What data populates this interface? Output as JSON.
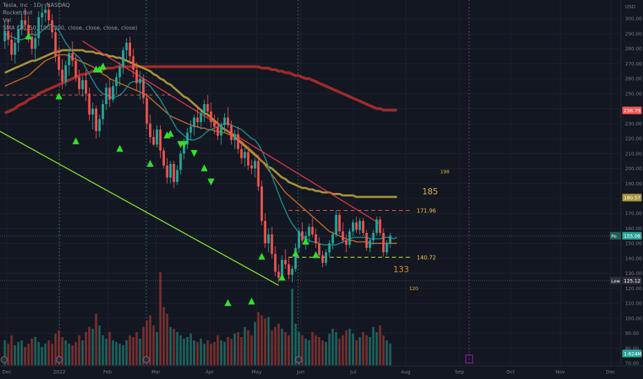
{
  "legend": {
    "line1": "Tesla, Inc · 1D · NASDAQ",
    "line2": "Rocket Bot",
    "line3": "Vol",
    "line4": "SMA (20, 50, 100, 200, close, close, close, close)"
  },
  "colors": {
    "background": "#131722",
    "grid": "#1e222d",
    "bull": "#26a69a",
    "bear": "#ef5350",
    "sma20": "#1b8a8a",
    "sma50": "#c06a28",
    "sma100": "#a89338",
    "sma200": "#a12a2a",
    "signal": "#32e02c",
    "support_line": "#7ee02a",
    "resistance_line": "#e0344a"
  },
  "chart_data": {
    "type": "candlestick",
    "ylabel": "USD",
    "ylim": [
      70,
      310
    ],
    "x_ticks": [
      "Dec",
      "2022",
      "Feb",
      "Mar",
      "Apr",
      "May",
      "Jun",
      "Jul",
      "Aug",
      "Sep",
      "Oct",
      "Nov",
      "Dec"
    ],
    "y_ticks": [
      70,
      80,
      90,
      100,
      110,
      120,
      130,
      140,
      150,
      160,
      170,
      180,
      190,
      200,
      210,
      220,
      230,
      240,
      250,
      260,
      270,
      280,
      290,
      300
    ],
    "price_badges": [
      {
        "label": "",
        "value": "238.79",
        "color": "#ef5350"
      },
      {
        "label": "",
        "value": "180.57",
        "color": "#a89338"
      },
      {
        "label": "Po",
        "value": "155.06",
        "color": "#26a69a"
      },
      {
        "label": "Low",
        "value": "125.12",
        "color": "#2a2e39"
      },
      {
        "label": "",
        "value": "1.624M",
        "color": "#26a69a"
      }
    ],
    "levels": [
      {
        "label": "171.96",
        "value": 171.96,
        "color": "#ef5350"
      },
      {
        "label": "140.72",
        "value": 140.72,
        "color": "#c8e84a"
      }
    ],
    "targets": [
      {
        "label": "185",
        "value": 185,
        "color": "#e0b040"
      },
      {
        "label": "198",
        "value": 198,
        "color": "#e0b040"
      },
      {
        "label": "133",
        "value": 133,
        "color": "#e08a20"
      },
      {
        "label": "120",
        "value": 120,
        "color": "#e0b040"
      }
    ],
    "candles": [
      [
        285,
        298,
        280,
        292
      ],
      [
        292,
        300,
        282,
        286
      ],
      [
        286,
        291,
        272,
        276
      ],
      [
        276,
        288,
        270,
        284
      ],
      [
        284,
        296,
        278,
        293
      ],
      [
        293,
        305,
        289,
        299
      ],
      [
        299,
        307,
        292,
        296
      ],
      [
        296,
        302,
        284,
        288
      ],
      [
        288,
        294,
        276,
        280
      ],
      [
        280,
        292,
        272,
        287
      ],
      [
        287,
        305,
        282,
        301
      ],
      [
        301,
        310,
        295,
        304
      ],
      [
        304,
        310,
        298,
        306
      ],
      [
        306,
        310,
        296,
        299
      ],
      [
        299,
        303,
        287,
        291
      ],
      [
        291,
        293,
        271,
        275
      ],
      [
        275,
        281,
        262,
        266
      ],
      [
        266,
        273,
        253,
        258
      ],
      [
        258,
        272,
        255,
        269
      ],
      [
        269,
        280,
        262,
        277
      ],
      [
        277,
        285,
        268,
        272
      ],
      [
        272,
        276,
        258,
        261
      ],
      [
        261,
        266,
        249,
        253
      ],
      [
        253,
        262,
        248,
        259
      ],
      [
        259,
        266,
        245,
        250
      ],
      [
        250,
        254,
        232,
        236
      ],
      [
        236,
        244,
        226,
        240
      ],
      [
        240,
        242,
        220,
        225
      ],
      [
        225,
        236,
        221,
        233
      ],
      [
        233,
        246,
        229,
        243
      ],
      [
        243,
        257,
        239,
        254
      ],
      [
        254,
        260,
        241,
        246
      ],
      [
        246,
        258,
        244,
        255
      ],
      [
        255,
        264,
        249,
        261
      ],
      [
        261,
        271,
        255,
        268
      ],
      [
        268,
        281,
        263,
        279
      ],
      [
        279,
        287,
        272,
        284
      ],
      [
        284,
        288,
        270,
        275
      ],
      [
        275,
        280,
        261,
        266
      ],
      [
        266,
        271,
        252,
        257
      ],
      [
        257,
        265,
        246,
        260
      ],
      [
        260,
        263,
        243,
        247
      ],
      [
        247,
        250,
        226,
        230
      ],
      [
        230,
        236,
        217,
        221
      ],
      [
        221,
        226,
        215,
        216
      ],
      [
        216,
        229,
        214,
        226
      ],
      [
        226,
        229,
        207,
        212
      ],
      [
        212,
        214,
        200,
        202
      ],
      [
        202,
        207,
        190,
        194
      ],
      [
        194,
        205,
        190,
        203
      ],
      [
        203,
        205,
        187,
        191
      ],
      [
        191,
        202,
        189,
        199
      ],
      [
        199,
        212,
        196,
        210
      ],
      [
        210,
        220,
        206,
        216
      ],
      [
        216,
        227,
        213,
        224
      ],
      [
        224,
        232,
        219,
        228
      ],
      [
        228,
        236,
        222,
        234
      ],
      [
        234,
        240,
        227,
        231
      ],
      [
        231,
        239,
        226,
        237
      ],
      [
        237,
        246,
        231,
        243
      ],
      [
        243,
        249,
        234,
        238
      ],
      [
        238,
        244,
        227,
        231
      ],
      [
        231,
        236,
        223,
        228
      ],
      [
        228,
        234,
        219,
        222
      ],
      [
        222,
        231,
        216,
        229
      ],
      [
        229,
        237,
        224,
        234
      ],
      [
        234,
        241,
        227,
        229
      ],
      [
        229,
        232,
        216,
        219
      ],
      [
        219,
        226,
        213,
        223
      ],
      [
        223,
        228,
        210,
        213
      ],
      [
        213,
        218,
        203,
        207
      ],
      [
        207,
        214,
        201,
        211
      ],
      [
        211,
        215,
        199,
        202
      ],
      [
        202,
        206,
        196,
        200
      ],
      [
        200,
        207,
        194,
        205
      ],
      [
        205,
        209,
        185,
        188
      ],
      [
        188,
        192,
        162,
        165
      ],
      [
        165,
        170,
        147,
        150
      ],
      [
        150,
        160,
        144,
        156
      ],
      [
        156,
        161,
        140,
        143
      ],
      [
        143,
        148,
        128,
        131
      ],
      [
        131,
        136,
        124,
        127
      ],
      [
        127,
        142,
        125,
        139
      ],
      [
        139,
        146,
        133,
        136
      ],
      [
        136,
        141,
        126,
        129
      ],
      [
        129,
        135,
        124,
        133
      ],
      [
        133,
        150,
        131,
        147
      ],
      [
        147,
        160,
        144,
        158
      ],
      [
        158,
        164,
        150,
        152
      ],
      [
        152,
        158,
        146,
        155
      ],
      [
        155,
        163,
        150,
        161
      ],
      [
        161,
        167,
        154,
        156
      ],
      [
        156,
        160,
        147,
        150
      ],
      [
        150,
        154,
        140,
        142
      ],
      [
        142,
        145,
        134,
        137
      ],
      [
        137,
        146,
        135,
        144
      ],
      [
        144,
        152,
        141,
        150
      ],
      [
        150,
        158,
        146,
        156
      ],
      [
        156,
        172,
        154,
        169
      ],
      [
        169,
        171,
        156,
        158
      ],
      [
        158,
        164,
        150,
        152
      ],
      [
        152,
        156,
        144,
        149
      ],
      [
        149,
        160,
        147,
        158
      ],
      [
        158,
        166,
        155,
        164
      ],
      [
        164,
        168,
        157,
        159
      ],
      [
        159,
        167,
        156,
        165
      ],
      [
        165,
        167,
        155,
        157
      ],
      [
        157,
        159,
        145,
        147
      ],
      [
        147,
        154,
        144,
        152
      ],
      [
        152,
        159,
        149,
        157
      ],
      [
        157,
        168,
        155,
        166
      ],
      [
        166,
        168,
        155,
        157
      ],
      [
        157,
        160,
        141,
        144
      ],
      [
        144,
        152,
        142,
        150
      ],
      [
        150,
        157,
        147,
        155
      ]
    ],
    "volume": [
      30,
      26,
      36,
      24,
      28,
      30,
      22,
      26,
      32,
      34,
      28,
      22,
      26,
      30,
      26,
      38,
      42,
      34,
      30,
      26,
      24,
      28,
      36,
      30,
      40,
      46,
      44,
      62,
      48,
      36,
      32,
      40,
      30,
      28,
      26,
      24,
      30,
      36,
      34,
      40,
      32,
      46,
      54,
      60,
      48,
      40,
      112,
      70,
      62,
      46,
      44,
      40,
      36,
      32,
      34,
      38,
      30,
      28,
      32,
      26,
      30,
      26,
      28,
      36,
      30,
      28,
      34,
      32,
      38,
      40,
      34,
      46,
      42,
      36,
      52,
      64,
      60,
      56,
      58,
      42,
      46,
      50,
      44,
      40,
      36,
      92,
      50,
      40,
      36,
      32,
      30,
      40,
      36,
      34,
      30,
      28,
      38,
      44,
      40,
      32,
      36,
      42,
      44,
      38,
      30,
      34,
      40,
      36,
      34,
      46,
      40,
      48,
      36,
      30,
      26
    ],
    "sma20": [
      290,
      289,
      288,
      287,
      286,
      286,
      287,
      289,
      290,
      289,
      290,
      292,
      294,
      296,
      296,
      294,
      292,
      288,
      284,
      281,
      278,
      276,
      274,
      271,
      267,
      263,
      259,
      255,
      252,
      250,
      249,
      248,
      247,
      248,
      249,
      251,
      254,
      257,
      258,
      258,
      259,
      258,
      257,
      255,
      252,
      249,
      246,
      242,
      238,
      234,
      230,
      226,
      224,
      222,
      220,
      219,
      219,
      220,
      221,
      223,
      225,
      226,
      227,
      228,
      229,
      230,
      230,
      229,
      228,
      227,
      226,
      224,
      222,
      220,
      219,
      216,
      212,
      207,
      201,
      195,
      189,
      183,
      177,
      172,
      167,
      163,
      160,
      157,
      155,
      153,
      152,
      151,
      151,
      150,
      149,
      149,
      149,
      149,
      149,
      150,
      151,
      152,
      153,
      154,
      154,
      154,
      154,
      154,
      153,
      153,
      153,
      153,
      154,
      154,
      154,
      153,
      154
    ],
    "sma50": [
      255,
      256,
      257,
      258,
      259,
      260,
      261,
      262,
      264,
      266,
      268,
      270,
      272,
      273,
      274,
      275,
      276,
      276,
      276,
      275,
      274,
      273,
      272,
      271,
      270,
      269,
      268,
      266,
      265,
      263,
      262,
      260,
      259,
      258,
      257,
      256,
      255,
      254,
      253,
      252,
      251,
      250,
      249,
      247,
      245,
      243,
      241,
      239,
      237,
      235,
      234,
      233,
      232,
      231,
      230,
      229,
      228,
      228,
      227,
      227,
      226,
      226,
      225,
      225,
      224,
      224,
      223,
      222,
      221,
      220,
      218,
      216,
      214,
      212,
      210,
      208,
      205,
      202,
      199,
      196,
      193,
      190,
      187,
      184,
      182,
      180,
      178,
      176,
      174,
      172,
      170,
      168,
      166,
      164,
      162,
      160,
      158,
      157,
      156,
      155,
      154,
      153,
      152,
      152,
      151,
      151,
      151,
      151,
      150,
      150,
      150,
      150,
      150,
      150,
      150,
      150,
      150
    ],
    "sma100": [
      264,
      265,
      266,
      267,
      268,
      269,
      270,
      271,
      272,
      272,
      273,
      274,
      275,
      276,
      277,
      278,
      278,
      279,
      279,
      279,
      279,
      279,
      279,
      279,
      278,
      278,
      278,
      277,
      277,
      276,
      276,
      275,
      275,
      274,
      274,
      273,
      272,
      271,
      270,
      269,
      268,
      267,
      266,
      265,
      263,
      262,
      260,
      259,
      257,
      256,
      254,
      252,
      250,
      248,
      247,
      245,
      243,
      241,
      239,
      237,
      236,
      234,
      232,
      230,
      228,
      226,
      225,
      223,
      221,
      219,
      217,
      215,
      213,
      211,
      209,
      207,
      205,
      203,
      201,
      200,
      198,
      196,
      194,
      193,
      191,
      190,
      189,
      188,
      187,
      187,
      186,
      186,
      185,
      185,
      184,
      184,
      184,
      183,
      183,
      183,
      182,
      182,
      182,
      182,
      181,
      181,
      181,
      181,
      181,
      181,
      181,
      181,
      181,
      181,
      181,
      181,
      181
    ],
    "sma200": [
      237,
      238,
      239,
      240,
      242,
      243,
      244,
      246,
      247,
      248,
      250,
      251,
      252,
      253,
      254,
      255,
      256,
      257,
      258,
      259,
      260,
      261,
      262,
      263,
      263,
      264,
      265,
      265,
      266,
      266,
      267,
      267,
      267,
      268,
      268,
      268,
      268,
      268,
      268,
      268,
      268,
      268,
      268,
      268,
      268,
      268,
      268,
      268,
      268,
      268,
      268,
      268,
      268,
      268,
      268,
      268,
      268,
      268,
      268,
      268,
      268,
      268,
      268,
      268,
      268,
      268,
      268,
      268,
      268,
      268,
      268,
      268,
      268,
      268,
      268,
      268,
      267,
      267,
      267,
      266,
      266,
      265,
      265,
      264,
      264,
      263,
      262,
      262,
      261,
      260,
      260,
      259,
      258,
      257,
      256,
      255,
      254,
      253,
      252,
      251,
      250,
      249,
      248,
      247,
      246,
      245,
      244,
      243,
      242,
      241,
      240,
      240,
      239,
      239,
      239,
      239,
      239
    ],
    "signals": [
      {
        "i": 7,
        "dir": "up",
        "price": 288
      },
      {
        "i": 16,
        "dir": "up",
        "price": 248
      },
      {
        "i": 21,
        "dir": "up",
        "price": 218
      },
      {
        "i": 27,
        "dir": "up",
        "price": 266
      },
      {
        "i": 28,
        "dir": "up",
        "price": 266
      },
      {
        "i": 29,
        "dir": "up",
        "price": 268
      },
      {
        "i": 34,
        "dir": "up",
        "price": 213
      },
      {
        "i": 43,
        "dir": "up",
        "price": 203
      },
      {
        "i": 48,
        "dir": "up",
        "price": 222
      },
      {
        "i": 49,
        "dir": "up",
        "price": 223
      },
      {
        "i": 52,
        "dir": "down",
        "price": 216
      },
      {
        "i": 53,
        "dir": "down",
        "price": 216
      },
      {
        "i": 56,
        "dir": "down",
        "price": 210
      },
      {
        "i": 59,
        "dir": "up",
        "price": 200
      },
      {
        "i": 61,
        "dir": "down",
        "price": 191
      },
      {
        "i": 66,
        "dir": "up",
        "price": 110
      },
      {
        "i": 73,
        "dir": "up",
        "price": 111
      },
      {
        "i": 76,
        "dir": "up",
        "price": 141
      },
      {
        "i": 82,
        "dir": "up",
        "price": 127
      },
      {
        "i": 86,
        "dir": "up",
        "price": 143
      },
      {
        "i": 89,
        "dir": "up",
        "price": 151
      },
      {
        "i": 92,
        "dir": "up",
        "price": 142
      }
    ],
    "support_line": {
      "from": [
        -12,
        238
      ],
      "to": [
        81,
        122
      ]
    },
    "resistance_line": {
      "from": [
        23,
        285
      ],
      "to": [
        111,
        163
      ]
    }
  }
}
